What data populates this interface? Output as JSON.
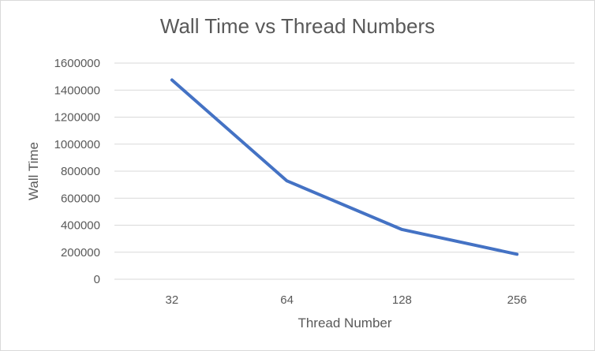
{
  "chart_data": {
    "type": "line",
    "title": "Wall Time vs Thread Numbers",
    "xlabel": "Thread Number",
    "ylabel": "Wall Time",
    "categories": [
      "32",
      "64",
      "128",
      "256"
    ],
    "series": [
      {
        "values": [
          1475000,
          728000,
          368000,
          185000
        ],
        "color": "#4472c4"
      }
    ],
    "ylim": [
      0,
      1600000
    ],
    "yticks": [
      "0",
      "200000",
      "400000",
      "600000",
      "800000",
      "1000000",
      "1200000",
      "1400000",
      "1600000"
    ],
    "grid": true,
    "gridColor": "#d9d9d9"
  }
}
